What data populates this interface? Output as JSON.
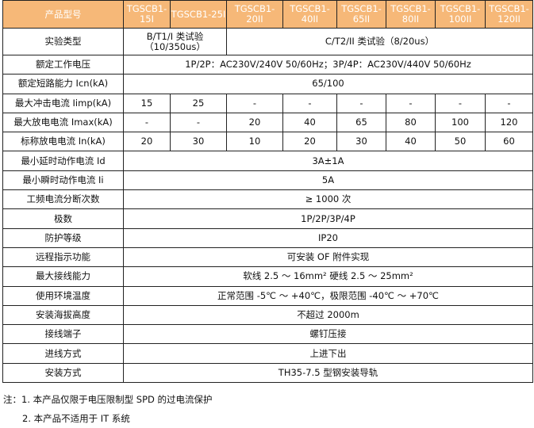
{
  "header": {
    "label": "产品型号",
    "models": [
      "TGSCB1-15I",
      "TGSCB1-25I",
      "TGSCB1-20II",
      "TGSCB1-40II",
      "TGSCB1-65II",
      "TGSCB1-80II",
      "TGSCB1-100II",
      "TGSCB1-120II"
    ]
  },
  "test_type": {
    "label": "实验类型",
    "class1": "B/T1/I 类试验（10/350us）",
    "class2": "C/T2/II 类试验（8/20us）"
  },
  "rated_voltage": {
    "label": "额定工作电压",
    "value": "1P/2P：AC230V/240V 50/60Hz；3P/4P：AC230V/440V 50/60Hz"
  },
  "short_circuit": {
    "label": "额定短路能力 Icn(kA)",
    "value": "65/100"
  },
  "iimp": {
    "label": "最大冲击电流 Iimp(kA)",
    "values": [
      "15",
      "25",
      "-",
      "-",
      "-",
      "-",
      "-",
      "-"
    ]
  },
  "imax": {
    "label": "最大放电电流 Imax(kA)",
    "values": [
      "-",
      "-",
      "20",
      "40",
      "65",
      "80",
      "100",
      "120"
    ]
  },
  "in": {
    "label": "标称放电电流 In(kA)",
    "values": [
      "20",
      "30",
      "10",
      "20",
      "30",
      "40",
      "50",
      "60"
    ]
  },
  "rows": [
    {
      "label": "最小延时动作电流 Id",
      "value": "3A±1A"
    },
    {
      "label": "最小瞬时动作电流 Ii",
      "value": "5A"
    },
    {
      "label": "工频电流分断次数",
      "value": "≥ 1000 次"
    },
    {
      "label": "极数",
      "value": "1P/2P/3P/4P"
    },
    {
      "label": "防护等级",
      "value": "IP20"
    },
    {
      "label": "远程指示功能",
      "value": "可安装 OF 附件实现"
    },
    {
      "label": "最大接线能力",
      "value": "软线 2.5 ～ 16mm² 硬线 2.5 ～ 25mm²"
    },
    {
      "label": "使用环境温度",
      "value": "正常范围 -5℃ ～ +40℃，极限范围 -40℃ ～ +70℃"
    },
    {
      "label": "安装海拔高度",
      "value": "不超过 2000m"
    },
    {
      "label": "接线端子",
      "value": "螺钉压接"
    },
    {
      "label": "进线方式",
      "value": "上进下出"
    },
    {
      "label": "安装方式",
      "value": "TH35-7.5 型钢安装导轨"
    }
  ],
  "notes": [
    "注：1. 本产品仅限于电压限制型 SPD 的过电流保护",
    "2. 本产品不适用于 IT 系统"
  ],
  "colors": {
    "header_bg": "#f6b878",
    "header_text": "#ffffff"
  }
}
